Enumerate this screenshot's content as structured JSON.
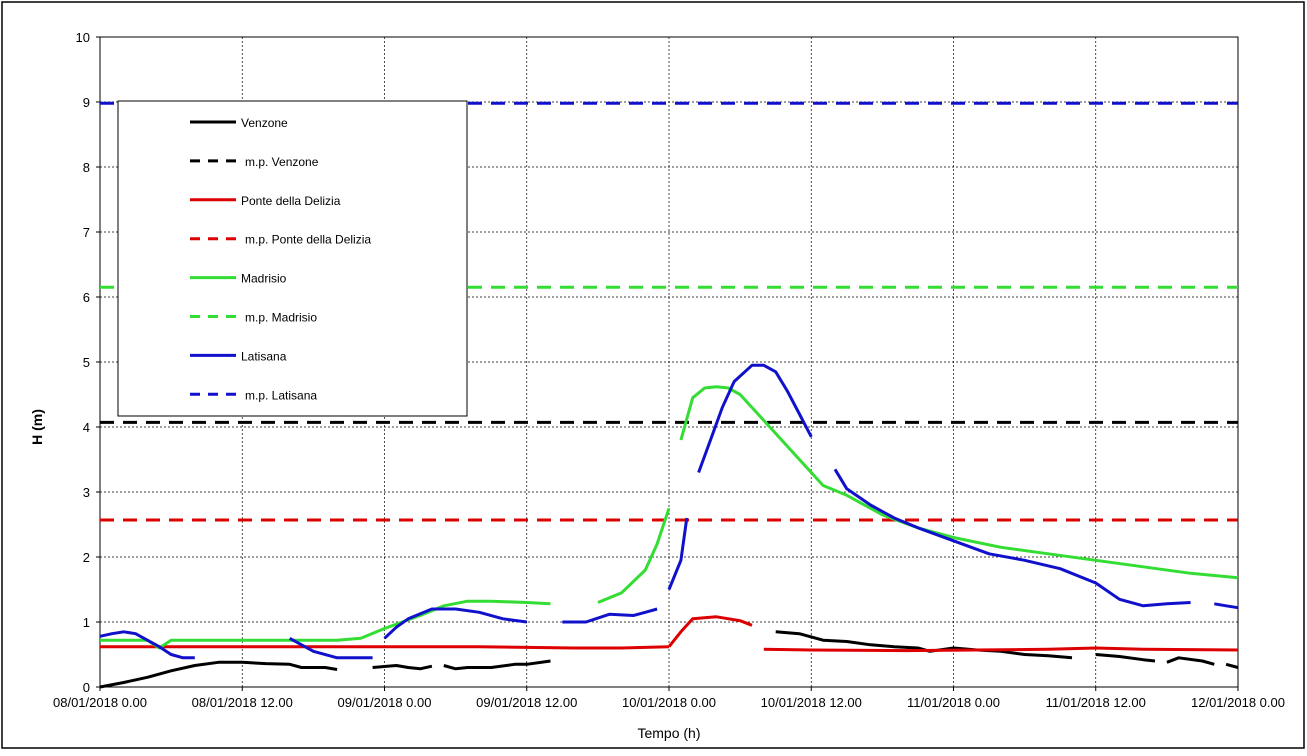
{
  "chart_data": {
    "type": "line",
    "xlabel": "Tempo (h)",
    "ylabel": "H (m)",
    "ylim": [
      0,
      10
    ],
    "yticks": [
      0,
      1,
      2,
      3,
      4,
      5,
      6,
      7,
      8,
      9,
      10
    ],
    "xlim_hours": [
      0,
      96
    ],
    "xticks": [
      "08/01/2018 0.00",
      "08/01/2018 12.00",
      "09/01/2018 0.00",
      "09/01/2018 12.00",
      "10/01/2018 0.00",
      "10/01/2018 12.00",
      "11/01/2018 0.00",
      "11/01/2018 12.00",
      "12/01/2018 0.00"
    ],
    "grid": true,
    "legend_position": "top-left",
    "series": [
      {
        "name": "Venzone",
        "color": "#000000",
        "dash": false,
        "segments": [
          [
            [
              0,
              0.0
            ],
            [
              2,
              0.07
            ],
            [
              4,
              0.15
            ],
            [
              6,
              0.25
            ],
            [
              8,
              0.33
            ],
            [
              10,
              0.38
            ],
            [
              12,
              0.38
            ],
            [
              14,
              0.36
            ],
            [
              16,
              0.35
            ],
            [
              17,
              0.3
            ],
            [
              19,
              0.3
            ],
            [
              20,
              0.27
            ]
          ],
          [
            [
              23,
              0.3
            ],
            [
              25,
              0.33
            ],
            [
              26,
              0.3
            ],
            [
              27,
              0.28
            ],
            [
              28,
              0.32
            ]
          ],
          [
            [
              29,
              0.33
            ],
            [
              30,
              0.28
            ],
            [
              31,
              0.3
            ],
            [
              33,
              0.3
            ],
            [
              35,
              0.35
            ],
            [
              36,
              0.35
            ],
            [
              38,
              0.4
            ]
          ],
          [
            [
              57,
              0.85
            ],
            [
              59,
              0.82
            ],
            [
              61,
              0.72
            ],
            [
              63,
              0.7
            ],
            [
              65,
              0.65
            ],
            [
              67,
              0.62
            ],
            [
              69,
              0.6
            ],
            [
              70,
              0.55
            ],
            [
              72,
              0.6
            ],
            [
              74,
              0.57
            ],
            [
              76,
              0.55
            ],
            [
              78,
              0.5
            ],
            [
              80,
              0.48
            ],
            [
              82,
              0.45
            ]
          ],
          [
            [
              84,
              0.5
            ],
            [
              86,
              0.47
            ],
            [
              88,
              0.42
            ],
            [
              89,
              0.4
            ]
          ],
          [
            [
              90,
              0.38
            ],
            [
              91,
              0.45
            ],
            [
              93,
              0.4
            ],
            [
              94,
              0.35
            ]
          ],
          [
            [
              95,
              0.35
            ],
            [
              96,
              0.3
            ]
          ]
        ]
      },
      {
        "name": "m.p. Venzone",
        "color": "#000000",
        "dash": true,
        "segments": [
          [
            [
              0,
              4.07
            ],
            [
              96,
              4.07
            ]
          ]
        ]
      },
      {
        "name": "Ponte della Delizia",
        "color": "#dd0000",
        "dash": false,
        "segments": [
          [
            [
              0,
              0.62
            ],
            [
              8,
              0.62
            ],
            [
              16,
              0.62
            ],
            [
              24,
              0.62
            ],
            [
              32,
              0.62
            ],
            [
              40,
              0.6
            ],
            [
              44,
              0.6
            ],
            [
              48,
              0.62
            ]
          ],
          [
            [
              48,
              0.62
            ],
            [
              49,
              0.85
            ],
            [
              50,
              1.05
            ],
            [
              52,
              1.08
            ],
            [
              54,
              1.02
            ],
            [
              55,
              0.95
            ]
          ],
          [
            [
              56,
              0.58
            ],
            [
              60,
              0.57
            ],
            [
              68,
              0.56
            ],
            [
              80,
              0.58
            ],
            [
              84,
              0.6
            ],
            [
              88,
              0.58
            ],
            [
              96,
              0.57
            ]
          ]
        ]
      },
      {
        "name": "m.p. Ponte della Delizia",
        "color": "#dd0000",
        "dash": true,
        "segments": [
          [
            [
              0,
              2.57
            ],
            [
              96,
              2.57
            ]
          ]
        ]
      },
      {
        "name": "Madrisio",
        "color": "#33dd33",
        "dash": false,
        "segments": [
          [
            [
              0,
              0.72
            ],
            [
              2,
              0.72
            ],
            [
              4,
              0.72
            ],
            [
              5,
              0.6
            ],
            [
              6,
              0.72
            ],
            [
              8,
              0.72
            ],
            [
              12,
              0.72
            ],
            [
              16,
              0.72
            ],
            [
              20,
              0.72
            ],
            [
              22,
              0.75
            ],
            [
              24,
              0.9
            ],
            [
              27,
              1.1
            ],
            [
              29,
              1.25
            ],
            [
              31,
              1.32
            ],
            [
              33,
              1.32
            ],
            [
              36,
              1.3
            ],
            [
              38,
              1.28
            ]
          ],
          [
            [
              42,
              1.3
            ],
            [
              44,
              1.45
            ],
            [
              46,
              1.8
            ],
            [
              47,
              2.2
            ],
            [
              48,
              2.75
            ]
          ],
          [
            [
              49,
              3.8
            ],
            [
              50,
              4.45
            ],
            [
              51,
              4.6
            ],
            [
              52,
              4.62
            ],
            [
              53,
              4.6
            ],
            [
              54,
              4.5
            ],
            [
              55,
              4.3
            ]
          ],
          [
            [
              55,
              4.3
            ],
            [
              57,
              3.9
            ],
            [
              59,
              3.5
            ],
            [
              61,
              3.1
            ],
            [
              63,
              2.95
            ],
            [
              66,
              2.65
            ],
            [
              69,
              2.45
            ],
            [
              72,
              2.3
            ],
            [
              76,
              2.15
            ],
            [
              80,
              2.05
            ],
            [
              84,
              1.95
            ],
            [
              88,
              1.85
            ],
            [
              92,
              1.75
            ],
            [
              96,
              1.68
            ]
          ]
        ]
      },
      {
        "name": "m.p. Madrisio",
        "color": "#33dd33",
        "dash": true,
        "segments": [
          [
            [
              0,
              6.15
            ],
            [
              96,
              6.15
            ]
          ]
        ]
      },
      {
        "name": "Latisana",
        "color": "#1111cc",
        "dash": false,
        "segments": [
          [
            [
              0,
              0.78
            ],
            [
              1,
              0.82
            ],
            [
              2,
              0.85
            ],
            [
              3,
              0.82
            ],
            [
              4,
              0.72
            ],
            [
              5,
              0.62
            ],
            [
              6,
              0.5
            ],
            [
              7,
              0.45
            ],
            [
              8,
              0.45
            ]
          ],
          [
            [
              16,
              0.75
            ],
            [
              17,
              0.65
            ],
            [
              18,
              0.55
            ],
            [
              20,
              0.45
            ],
            [
              22,
              0.45
            ],
            [
              23,
              0.45
            ]
          ],
          [
            [
              24,
              0.75
            ],
            [
              25,
              0.92
            ],
            [
              26,
              1.05
            ],
            [
              28,
              1.2
            ],
            [
              30,
              1.2
            ],
            [
              32,
              1.15
            ],
            [
              34,
              1.05
            ],
            [
              36,
              1.0
            ]
          ],
          [
            [
              39,
              1.0
            ],
            [
              41,
              1.0
            ],
            [
              43,
              1.12
            ],
            [
              45,
              1.1
            ],
            [
              46,
              1.15
            ],
            [
              47,
              1.2
            ]
          ],
          [
            [
              48,
              1.5
            ],
            [
              49,
              1.95
            ],
            [
              49.5,
              2.6
            ]
          ],
          [
            [
              50.5,
              3.3
            ],
            [
              51.5,
              3.8
            ],
            [
              52.5,
              4.3
            ],
            [
              53.5,
              4.7
            ],
            [
              55,
              4.95
            ],
            [
              56,
              4.95
            ],
            [
              57,
              4.85
            ],
            [
              58,
              4.55
            ],
            [
              59,
              4.2
            ],
            [
              60,
              3.85
            ]
          ],
          [
            [
              62,
              3.35
            ],
            [
              63,
              3.05
            ],
            [
              65,
              2.8
            ],
            [
              67,
              2.6
            ],
            [
              69,
              2.45
            ],
            [
              72,
              2.25
            ],
            [
              75,
              2.05
            ],
            [
              78,
              1.95
            ],
            [
              81,
              1.82
            ],
            [
              84,
              1.6
            ],
            [
              86,
              1.35
            ],
            [
              88,
              1.25
            ],
            [
              90,
              1.28
            ],
            [
              92,
              1.3
            ]
          ],
          [
            [
              94,
              1.28
            ],
            [
              95,
              1.25
            ],
            [
              96,
              1.22
            ]
          ]
        ]
      },
      {
        "name": "m.p. Latisana",
        "color": "#1111cc",
        "dash": true,
        "segments": [
          [
            [
              0,
              8.98
            ],
            [
              96,
              8.98
            ]
          ]
        ]
      }
    ]
  }
}
